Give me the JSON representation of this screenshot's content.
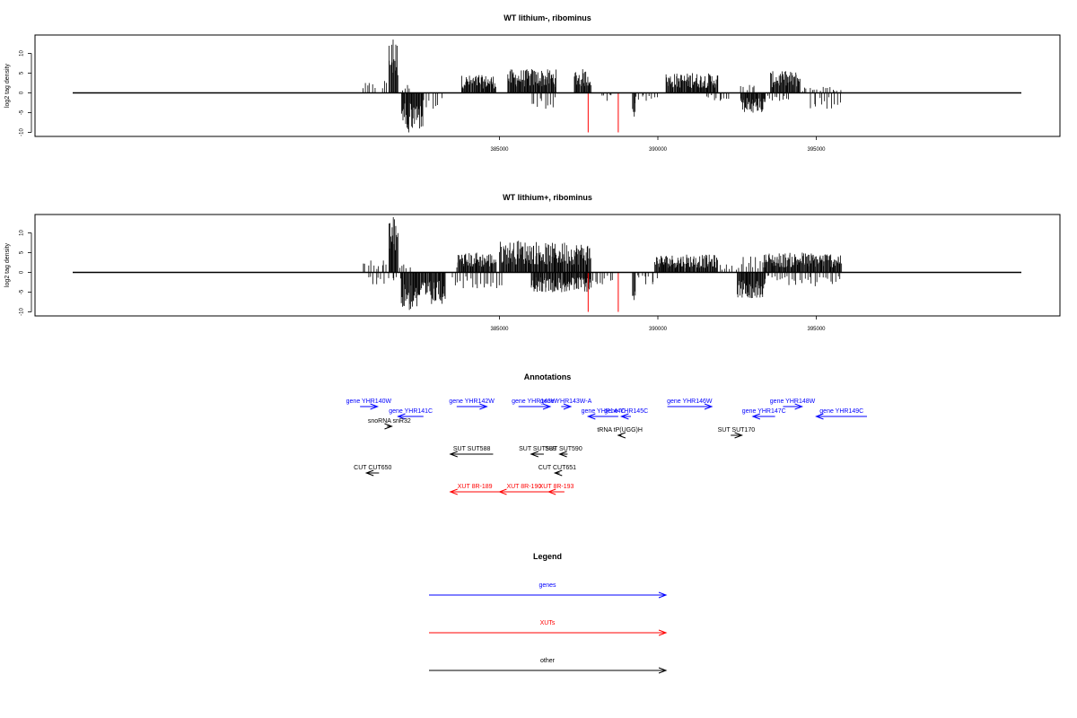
{
  "chart_data": [
    {
      "type": "bar",
      "title": "WT lithium-, ribominus",
      "ylabel": "log2 tag density",
      "xlim": [
        380600,
        396300
      ],
      "ylim": [
        -10,
        14
      ],
      "yticks": [
        -10,
        -5,
        0,
        5,
        10
      ],
      "xticks": [
        385000,
        390000,
        395000
      ],
      "plus_strand_regions": [
        {
          "start": 380650,
          "end": 381100,
          "max": 2.5
        },
        {
          "start": 381250,
          "end": 381500,
          "max": 3
        },
        {
          "start": 381500,
          "end": 381800,
          "max": 13.5
        },
        {
          "start": 381900,
          "end": 382200,
          "max": 2
        },
        {
          "start": 383800,
          "end": 384900,
          "max": 4.5
        },
        {
          "start": 385250,
          "end": 386800,
          "max": 6
        },
        {
          "start": 387350,
          "end": 387900,
          "max": 6
        },
        {
          "start": 390250,
          "end": 391900,
          "max": 5
        },
        {
          "start": 392600,
          "end": 393100,
          "max": 2
        },
        {
          "start": 393550,
          "end": 394500,
          "max": 5.5
        },
        {
          "start": 394500,
          "end": 395800,
          "max": 1.5
        }
      ],
      "minus_strand_regions": [
        {
          "start": 381900,
          "end": 382350,
          "max": -10
        },
        {
          "start": 382350,
          "end": 382600,
          "max": -9
        },
        {
          "start": 382600,
          "end": 383200,
          "max": -4
        },
        {
          "start": 386000,
          "end": 386800,
          "max": -4
        },
        {
          "start": 388200,
          "end": 388600,
          "max": -2
        },
        {
          "start": 389200,
          "end": 389300,
          "max": -6
        },
        {
          "start": 389300,
          "end": 390000,
          "max": -2
        },
        {
          "start": 391500,
          "end": 392300,
          "max": -2
        },
        {
          "start": 392600,
          "end": 393400,
          "max": -5
        },
        {
          "start": 393400,
          "end": 394200,
          "max": -2
        },
        {
          "start": 394800,
          "end": 395800,
          "max": -4
        }
      ],
      "highlights": [
        {
          "x": 387800,
          "value": -10,
          "color": "#ff0000"
        },
        {
          "x": 388750,
          "value": -10,
          "color": "#ff0000"
        }
      ]
    },
    {
      "type": "bar",
      "title": "WT lithium+, ribominus",
      "ylabel": "log2 tag density",
      "xlim": [
        380600,
        396300
      ],
      "ylim": [
        -10,
        14
      ],
      "yticks": [
        -10,
        -5,
        0,
        5,
        10
      ],
      "xticks": [
        385000,
        390000,
        395000
      ],
      "plus_strand_regions": [
        {
          "start": 380650,
          "end": 381250,
          "max": 3
        },
        {
          "start": 381250,
          "end": 381500,
          "max": 3
        },
        {
          "start": 381500,
          "end": 381800,
          "max": 14
        },
        {
          "start": 381800,
          "end": 382200,
          "max": 2
        },
        {
          "start": 383650,
          "end": 384900,
          "max": 5
        },
        {
          "start": 385000,
          "end": 386200,
          "max": 8
        },
        {
          "start": 386200,
          "end": 387900,
          "max": 7.5
        },
        {
          "start": 389900,
          "end": 391900,
          "max": 4.5
        },
        {
          "start": 391900,
          "end": 392500,
          "max": 2
        },
        {
          "start": 392500,
          "end": 393300,
          "max": 4
        },
        {
          "start": 393300,
          "end": 395800,
          "max": 5
        }
      ],
      "minus_strand_regions": [
        {
          "start": 380800,
          "end": 381400,
          "max": -3
        },
        {
          "start": 381500,
          "end": 381900,
          "max": -2
        },
        {
          "start": 381900,
          "end": 382400,
          "max": -9.5
        },
        {
          "start": 382400,
          "end": 383300,
          "max": -8
        },
        {
          "start": 383500,
          "end": 385100,
          "max": -4
        },
        {
          "start": 386000,
          "end": 387900,
          "max": -5
        },
        {
          "start": 387900,
          "end": 388600,
          "max": -3
        },
        {
          "start": 389200,
          "end": 389300,
          "max": -7
        },
        {
          "start": 389300,
          "end": 390000,
          "max": -3
        },
        {
          "start": 392500,
          "end": 393400,
          "max": -6.5
        },
        {
          "start": 393400,
          "end": 394100,
          "max": -2
        },
        {
          "start": 394100,
          "end": 395800,
          "max": -3.5
        }
      ],
      "highlights": [
        {
          "x": 387800,
          "value": -10,
          "color": "#ff0000"
        },
        {
          "x": 388750,
          "value": -10,
          "color": "#ff0000"
        }
      ]
    }
  ],
  "annotations": {
    "title": "Annotations",
    "features": [
      {
        "label": "gene YHR140W",
        "color": "#0000ff",
        "dir": "right",
        "start": 380600,
        "end": 381150,
        "row": 0
      },
      {
        "label": "gene YHR141C",
        "color": "#0000ff",
        "dir": "left",
        "start": 381800,
        "end": 382600,
        "row": 1
      },
      {
        "label": "snoRNA snR32",
        "color": "#000000",
        "dir": "right",
        "start": 381450,
        "end": 381600,
        "row": 2
      },
      {
        "label": "gene YHR142W",
        "color": "#0000ff",
        "dir": "right",
        "start": 383650,
        "end": 384600,
        "row": 0
      },
      {
        "label": "gene YHR143W",
        "color": "#0000ff",
        "dir": "right",
        "start": 385600,
        "end": 386600,
        "row": 0
      },
      {
        "label": "gene YHR143W-A",
        "color": "#0000ff",
        "dir": "right",
        "start": 386950,
        "end": 387250,
        "row": 0
      },
      {
        "label": "gene YHR144C",
        "color": "#0000ff",
        "dir": "left",
        "start": 387800,
        "end": 388750,
        "row": 1
      },
      {
        "label": "gene YHR145C",
        "color": "#0000ff",
        "dir": "left",
        "start": 388850,
        "end": 389150,
        "row": 1
      },
      {
        "label": "tRNA tP(UGG)H",
        "color": "#000000",
        "dir": "left",
        "start": 388750,
        "end": 388850,
        "row": 3
      },
      {
        "label": "gene YHR146W",
        "color": "#0000ff",
        "dir": "right",
        "start": 390300,
        "end": 391700,
        "row": 0
      },
      {
        "label": "gene YHR147C",
        "color": "#0000ff",
        "dir": "left",
        "start": 393000,
        "end": 393700,
        "row": 1
      },
      {
        "label": "gene YHR148W",
        "color": "#0000ff",
        "dir": "right",
        "start": 393950,
        "end": 394550,
        "row": 0
      },
      {
        "label": "gene YHR149C",
        "color": "#0000ff",
        "dir": "left",
        "start": 395000,
        "end": 396600,
        "row": 1
      },
      {
        "label": "SUT SUT588",
        "color": "#000000",
        "dir": "left",
        "start": 383450,
        "end": 384800,
        "row": 4
      },
      {
        "label": "SUT SUT589",
        "color": "#000000",
        "dir": "left",
        "start": 386000,
        "end": 386400,
        "row": 4
      },
      {
        "label": "SUT SUT590",
        "color": "#000000",
        "dir": "left",
        "start": 386900,
        "end": 387150,
        "row": 4
      },
      {
        "label": "SUT SUT170",
        "color": "#000000",
        "dir": "right",
        "start": 392300,
        "end": 392650,
        "row": 3
      },
      {
        "label": "CUT CUT650",
        "color": "#000000",
        "dir": "left",
        "start": 380800,
        "end": 381200,
        "row": 5
      },
      {
        "label": "CUT CUT651",
        "color": "#000000",
        "dir": "left",
        "start": 386750,
        "end": 386900,
        "row": 5
      },
      {
        "label": "XUT 8R-189",
        "color": "#ff0000",
        "dir": "left",
        "start": 383450,
        "end": 385000,
        "row": 6
      },
      {
        "label": "XUT 8R-190",
        "color": "#ff0000",
        "dir": "left",
        "start": 385000,
        "end": 386550,
        "row": 6
      },
      {
        "label": "XUT 8R-193",
        "color": "#ff0000",
        "dir": "left",
        "start": 386550,
        "end": 387050,
        "row": 6
      }
    ]
  },
  "legend": {
    "title": "Legend",
    "items": [
      {
        "label": "genes",
        "color": "#0000ff"
      },
      {
        "label": "XUTs",
        "color": "#ff0000"
      },
      {
        "label": "other",
        "color": "#000000"
      }
    ]
  }
}
